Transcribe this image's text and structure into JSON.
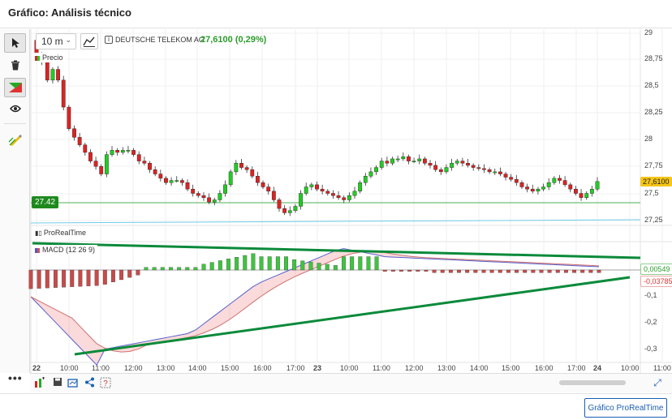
{
  "window": {
    "title": "Gráfico: Análisis técnico"
  },
  "header": {
    "interval": "10 m",
    "instrument": "DEUTSCHE TELEKOM AG",
    "last_price": "27,6100 (0,29%)"
  },
  "toolbar": {
    "icons": [
      "cursor-icon",
      "trash-icon",
      "draw-icon",
      "eye-icon",
      "pencil-icon"
    ],
    "more": "•••"
  },
  "price_panel": {
    "legend": "Precio",
    "axis_ticks": [
      "29",
      "28,75",
      "28,5",
      "28,25",
      "28",
      "27,75",
      "27,5",
      "27,25"
    ],
    "current_price_tag": "27,6100",
    "hline_tag": "27.42",
    "brand_label": "ProRealTime"
  },
  "macd_panel": {
    "legend": "MACD (12 26 9)",
    "axis_ticks": [
      "-0,1",
      "-0,2",
      "-0,3"
    ],
    "value_pos": "0,00549",
    "value_neg": "-0,03785"
  },
  "time_axis": [
    "22",
    "10:00",
    "11:00",
    "12:00",
    "13:00",
    "14:00",
    "15:00",
    "16:00",
    "17:00",
    "23",
    "10:00",
    "11:00",
    "12:00",
    "13:00",
    "14:00",
    "15:00",
    "16:00",
    "17:00",
    "24",
    "10:00",
    "11:00"
  ],
  "footer": {
    "cta": "Gráfico ProRealTime"
  },
  "colors": {
    "up": "#22cc22",
    "down": "#dd2222",
    "accent": "#1a5fb4",
    "trend": "#0a8a3a",
    "price_tag": "#f5c518"
  }
}
